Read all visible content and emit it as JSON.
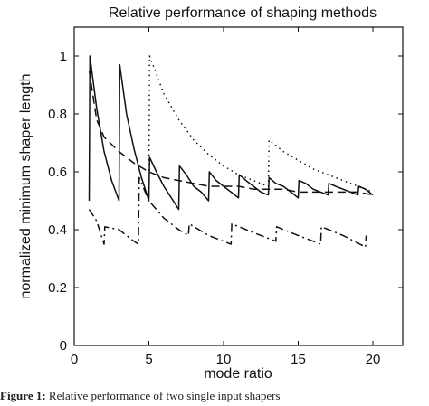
{
  "caption": {
    "label": "Figure 1:",
    "text": "Relative performance of two single input shapers"
  },
  "chart_data": {
    "type": "line",
    "title": "Relative performance of shaping methods",
    "xlabel": "mode ratio",
    "ylabel": "normalized minimum shaper length",
    "xlim": [
      0,
      22
    ],
    "ylim": [
      0,
      1.1
    ],
    "xticks": [
      0,
      5,
      10,
      15,
      20
    ],
    "yticks": [
      0,
      0.2,
      0.4,
      0.6,
      0.8,
      1
    ],
    "grid": false,
    "series": [
      {
        "style": "solid",
        "x": [
          1,
          1.05,
          1.5,
          2,
          2.5,
          3,
          3.05,
          3.5,
          4,
          4.5,
          5,
          5.05,
          5.5,
          6,
          6.5,
          7,
          7.05,
          7.5,
          8,
          8.5,
          9,
          9.05,
          9.5,
          10,
          10.5,
          11,
          11.05,
          11.5,
          12,
          12.5,
          13,
          13.05,
          13.5,
          14,
          14.5,
          15,
          15.05,
          15.5,
          16,
          16.5,
          17,
          17.05,
          17.5,
          18,
          18.5,
          19,
          19.05,
          19.5,
          20
        ],
        "y": [
          0.5,
          1.0,
          0.82,
          0.67,
          0.57,
          0.5,
          0.97,
          0.8,
          0.68,
          0.58,
          0.5,
          0.65,
          0.6,
          0.55,
          0.51,
          0.47,
          0.62,
          0.59,
          0.55,
          0.53,
          0.5,
          0.6,
          0.57,
          0.55,
          0.53,
          0.51,
          0.59,
          0.57,
          0.55,
          0.53,
          0.52,
          0.58,
          0.56,
          0.55,
          0.53,
          0.51,
          0.57,
          0.56,
          0.54,
          0.53,
          0.52,
          0.56,
          0.55,
          0.54,
          0.53,
          0.52,
          0.55,
          0.54,
          0.52
        ]
      },
      {
        "style": "dashed",
        "x": [
          1,
          1.5,
          2,
          3,
          4,
          5,
          6,
          7,
          8,
          9,
          10,
          11,
          12,
          13,
          14,
          15,
          16,
          17,
          18,
          19,
          20
        ],
        "y": [
          0.95,
          0.78,
          0.72,
          0.67,
          0.63,
          0.6,
          0.58,
          0.57,
          0.56,
          0.55,
          0.55,
          0.55,
          0.54,
          0.54,
          0.54,
          0.53,
          0.53,
          0.53,
          0.53,
          0.53,
          0.52
        ]
      },
      {
        "style": "dotted",
        "x": [
          5,
          5.05,
          6,
          7,
          8,
          9,
          10,
          11,
          12,
          12.95,
          13,
          13.05,
          14,
          15,
          16,
          17,
          18,
          19,
          20
        ],
        "y": [
          0.57,
          1.0,
          0.87,
          0.78,
          0.71,
          0.66,
          0.62,
          0.59,
          0.57,
          0.55,
          0.55,
          0.71,
          0.67,
          0.64,
          0.61,
          0.59,
          0.57,
          0.55,
          0.53
        ]
      },
      {
        "style": "dashdot",
        "x": [
          1,
          1.5,
          2,
          2.05,
          3,
          4,
          4.3,
          4.35,
          5,
          6,
          7,
          7.65,
          7.7,
          9,
          10.5,
          10.55,
          12,
          13.5,
          13.55,
          15,
          16.5,
          16.55,
          18,
          19.5,
          19.55
        ],
        "y": [
          0.47,
          0.43,
          0.35,
          0.41,
          0.4,
          0.36,
          0.35,
          0.58,
          0.5,
          0.44,
          0.4,
          0.38,
          0.42,
          0.38,
          0.35,
          0.42,
          0.39,
          0.36,
          0.41,
          0.38,
          0.35,
          0.41,
          0.38,
          0.34,
          0.38
        ]
      }
    ]
  }
}
